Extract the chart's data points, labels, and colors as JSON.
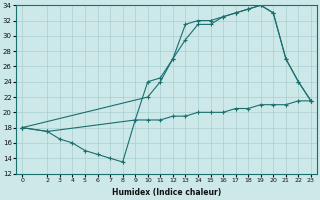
{
  "xlabel": "Humidex (Indice chaleur)",
  "ylabel": "",
  "bg_color": "#cce8e8",
  "line_color": "#1a6e6e",
  "grid_color": "#aacfcf",
  "xlim": [
    -0.5,
    23.5
  ],
  "ylim": [
    12,
    34
  ],
  "yticks": [
    12,
    14,
    16,
    18,
    20,
    22,
    24,
    26,
    28,
    30,
    32,
    34
  ],
  "xticks": [
    0,
    2,
    3,
    4,
    5,
    6,
    7,
    8,
    9,
    10,
    11,
    12,
    13,
    14,
    15,
    16,
    17,
    18,
    19,
    20,
    21,
    22,
    23
  ],
  "series": [
    {
      "x": [
        0,
        2,
        9,
        10,
        11,
        12,
        13,
        14,
        15,
        16,
        17,
        18,
        19,
        20,
        21,
        22,
        23
      ],
      "y": [
        18,
        17.5,
        19,
        19,
        19,
        19.5,
        19.5,
        20,
        20,
        20,
        20.5,
        20.5,
        21,
        21,
        21,
        21.5,
        21.5
      ]
    },
    {
      "x": [
        0,
        2,
        3,
        4,
        5,
        6,
        7,
        8,
        9,
        10,
        11,
        12,
        13,
        14,
        15,
        16,
        17,
        18,
        19,
        20,
        21,
        22,
        23
      ],
      "y": [
        18,
        17.5,
        16.5,
        16,
        15,
        14.5,
        14,
        13.5,
        19,
        24,
        24.5,
        27,
        31.5,
        32,
        32,
        32.5,
        33,
        33.5,
        34,
        33,
        27,
        24,
        21.5
      ]
    },
    {
      "x": [
        0,
        10,
        11,
        12,
        13,
        14,
        15,
        16,
        17,
        18,
        19,
        20,
        21,
        22,
        23
      ],
      "y": [
        18,
        22,
        24,
        27,
        29.5,
        31.5,
        31.5,
        32.5,
        33,
        33.5,
        34,
        33,
        27,
        24,
        21.5
      ]
    }
  ]
}
